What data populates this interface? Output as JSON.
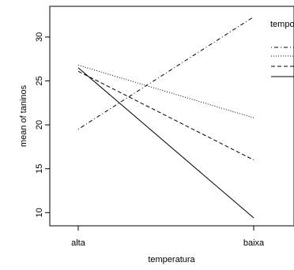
{
  "chart_data": {
    "type": "line",
    "title": "",
    "xlabel": "temperatura",
    "ylabel": "mean of taninos",
    "categories": [
      "alta",
      "baixa"
    ],
    "ylim": [
      8.5,
      33.5
    ],
    "yticks": [
      10,
      15,
      20,
      25,
      30
    ],
    "grid": false,
    "legend": {
      "title": "tempo",
      "placement": "right",
      "clipped": true
    },
    "series": [
      {
        "values": [
          19.5,
          32.3
        ],
        "line_style": "dotdash"
      },
      {
        "values": [
          26.8,
          20.8
        ],
        "line_style": "dotted"
      },
      {
        "values": [
          26.1,
          16.0
        ],
        "line_style": "dashed"
      },
      {
        "values": [
          26.5,
          9.4
        ],
        "line_style": "solid"
      }
    ],
    "colors": {
      "lines": "#000000",
      "background": "#ffffff"
    }
  }
}
